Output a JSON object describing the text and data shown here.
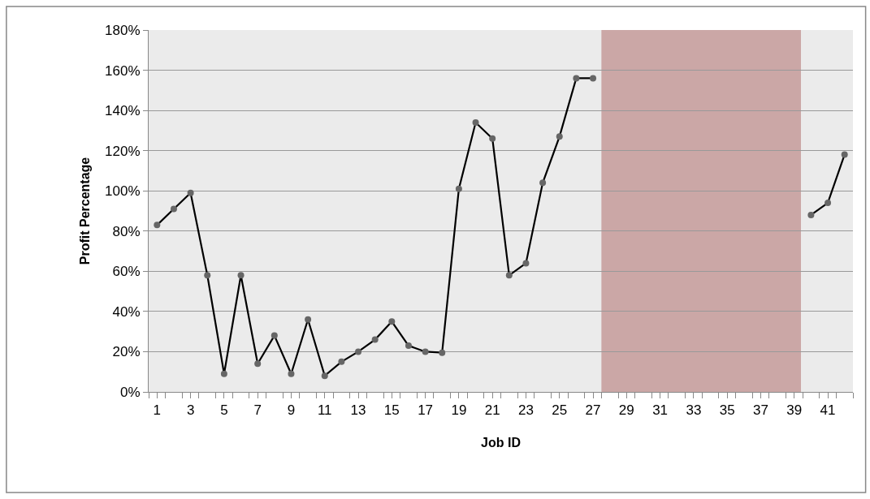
{
  "chart_data": {
    "type": "line",
    "xlabel": "Job ID",
    "ylabel": "Profit Percentage",
    "x": [
      1,
      2,
      3,
      4,
      5,
      6,
      7,
      8,
      9,
      10,
      11,
      12,
      13,
      14,
      15,
      16,
      17,
      18,
      19,
      20,
      21,
      22,
      23,
      24,
      25,
      26,
      27,
      28,
      29,
      30,
      31,
      32,
      33,
      34,
      35,
      36,
      37,
      38,
      39,
      40,
      41,
      42
    ],
    "series": [
      {
        "color": "#000000",
        "values": [
          0.83,
          0.91,
          0.99,
          0.58,
          0.09,
          0.58,
          0.14,
          0.28,
          0.09,
          0.36,
          0.08,
          0.15,
          0.2,
          0.26,
          0.35,
          0.23,
          0.2,
          0.195,
          1.01,
          1.34,
          1.26,
          0.58,
          0.64,
          1.04,
          1.27,
          1.56,
          1.56,
          null,
          null,
          null,
          null,
          null,
          null,
          null,
          null,
          null,
          null,
          null,
          null,
          0.88,
          0.94,
          1.18
        ]
      }
    ],
    "xlim": [
      0.5,
      42.5
    ],
    "xticks": [
      1,
      3,
      5,
      7,
      9,
      11,
      13,
      15,
      17,
      19,
      21,
      23,
      25,
      27,
      29,
      31,
      33,
      35,
      37,
      39,
      41
    ],
    "ylim": [
      0,
      1.8
    ],
    "yticks": [
      {
        "value": 0,
        "label": "0%"
      },
      {
        "value": 0.2,
        "label": "20%"
      },
      {
        "value": 0.4,
        "label": "40%"
      },
      {
        "value": 0.6,
        "label": "60%"
      },
      {
        "value": 0.8,
        "label": "80%"
      },
      {
        "value": 1.0,
        "label": "100%"
      },
      {
        "value": 1.2,
        "label": "120%"
      },
      {
        "value": 1.4,
        "label": "140%"
      },
      {
        "value": 1.6,
        "label": "160%"
      },
      {
        "value": 1.8,
        "label": "180%"
      }
    ],
    "bands": [
      {
        "axis": "x",
        "from": 27.5,
        "to": 39.4,
        "color": "#cba7a6"
      }
    ],
    "grid": "y",
    "marker": "circle",
    "line_style": "solid"
  }
}
